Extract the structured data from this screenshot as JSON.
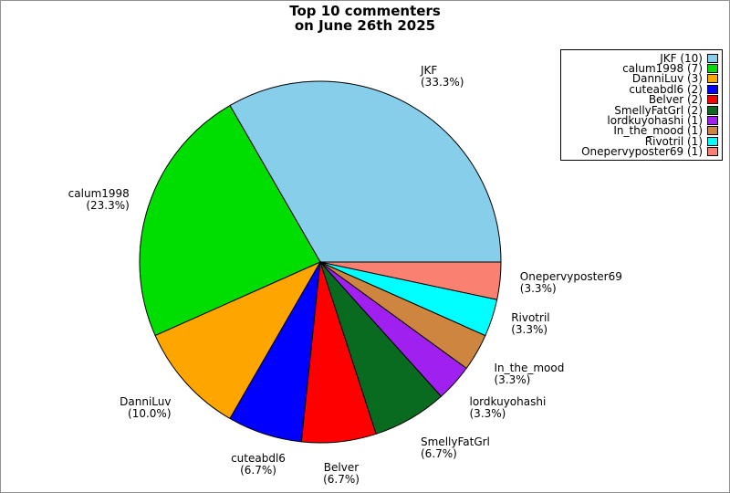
{
  "title": {
    "line1": "Top 10 commenters",
    "line2": "on June 26th 2025"
  },
  "chart_data": {
    "type": "pie",
    "title": "Top 10 commenters on June 26th 2025",
    "start_angle_deg": 0,
    "direction": "counterclockwise",
    "total_count": 30,
    "legend_position": "top-right",
    "slices": [
      {
        "label": "JKF",
        "count": 10,
        "percent": 33.3,
        "pct_label": "(33.3%)",
        "color": "#87CEEB",
        "legend": "JKF (10)"
      },
      {
        "label": "calum1998",
        "count": 7,
        "percent": 23.3,
        "pct_label": "(23.3%)",
        "color": "#00DD00",
        "legend": "calum1998 (7)"
      },
      {
        "label": "DanniLuv",
        "count": 3,
        "percent": 10.0,
        "pct_label": "(10.0%)",
        "color": "#FFA500",
        "legend": "DanniLuv (3)"
      },
      {
        "label": "cuteabdl6",
        "count": 2,
        "percent": 6.7,
        "pct_label": "(6.7%)",
        "color": "#0000FF",
        "legend": "cuteabdl6 (2)"
      },
      {
        "label": "Belver",
        "count": 2,
        "percent": 6.7,
        "pct_label": "(6.7%)",
        "color": "#FF0000",
        "legend": "Belver (2)"
      },
      {
        "label": "SmellyFatGrl",
        "count": 2,
        "percent": 6.7,
        "pct_label": "(6.7%)",
        "color": "#086B20",
        "legend": "SmellyFatGrl (2)"
      },
      {
        "label": "lordkuyohashi",
        "count": 1,
        "percent": 3.3,
        "pct_label": "(3.3%)",
        "color": "#A020F0",
        "legend": "lordkuyohashi (1)"
      },
      {
        "label": "In_the_mood",
        "count": 1,
        "percent": 3.3,
        "pct_label": "(3.3%)",
        "color": "#CD853F",
        "legend": "In_the_mood (1)"
      },
      {
        "label": "Rivotril",
        "count": 1,
        "percent": 3.3,
        "pct_label": "(3.3%)",
        "color": "#00FFFF",
        "legend": "Rivotril (1)"
      },
      {
        "label": "Onepervyposter69",
        "count": 1,
        "percent": 3.3,
        "pct_label": "(3.3%)",
        "color": "#FA8072",
        "legend": "Onepervyposter69 (1)"
      }
    ],
    "slice_edge_color": "#000000",
    "legend_border_color": "#000000",
    "canvas_border_color": "#909090"
  }
}
